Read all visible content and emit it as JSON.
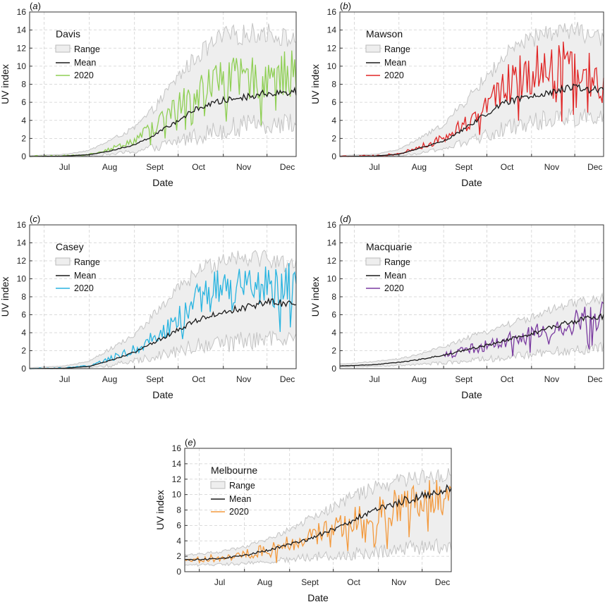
{
  "chart_data": [
    {
      "type": "line",
      "panel_label": "(a)",
      "station": "Davis",
      "xlabel": "Date",
      "ylabel": "UV index",
      "ylim": [
        0,
        16
      ],
      "yticks": [
        0,
        2,
        4,
        6,
        8,
        10,
        12,
        14,
        16
      ],
      "month_labels": [
        "Jul",
        "Aug",
        "Sept",
        "Oct",
        "Nov",
        "Dec"
      ],
      "x_range": [
        "2020-06-21",
        "2020-12-21"
      ],
      "grid": true,
      "legend_position": "top-left",
      "legend": [
        "Range",
        "Mean",
        "2020"
      ],
      "colors": {
        "series": "#8fcf55",
        "mean": "#1a1a1a",
        "range": "#eeeeee"
      },
      "series_start": "2020-06-21",
      "series": [
        {
          "name": "Range",
          "role": "band",
          "x": [
            "2020-06-21",
            "2020-07-15",
            "2020-08-01",
            "2020-08-15",
            "2020-09-01",
            "2020-09-15",
            "2020-10-01",
            "2020-10-15",
            "2020-11-01",
            "2020-11-15",
            "2020-12-01",
            "2020-12-21"
          ],
          "low": [
            0,
            0,
            0.05,
            0.2,
            0.5,
            0.9,
            1.6,
            2.2,
            2.8,
            3.2,
            3.4,
            3.5
          ],
          "high": [
            0.1,
            0.25,
            0.7,
            1.8,
            3.2,
            5.5,
            9,
            11.5,
            13.5,
            13.8,
            14,
            13
          ]
        },
        {
          "name": "Mean",
          "role": "mean",
          "x": [
            "2020-06-21",
            "2020-07-15",
            "2020-08-01",
            "2020-08-15",
            "2020-09-01",
            "2020-09-15",
            "2020-10-01",
            "2020-10-15",
            "2020-11-01",
            "2020-11-15",
            "2020-12-01",
            "2020-12-21"
          ],
          "y": [
            0,
            0.05,
            0.2,
            0.6,
            1.3,
            2.4,
            4,
            5.4,
            6.2,
            6.6,
            7,
            7.2
          ]
        },
        {
          "name": "2020",
          "role": "series",
          "x": [
            "2020-06-21",
            "2020-07-15",
            "2020-08-01",
            "2020-08-15",
            "2020-09-01",
            "2020-09-15",
            "2020-10-01",
            "2020-10-15",
            "2020-11-01",
            "2020-11-15",
            "2020-12-01",
            "2020-12-21"
          ],
          "y": [
            0,
            0.05,
            0.25,
            0.8,
            1.8,
            3.4,
            5.6,
            7.4,
            8.6,
            8.5,
            9,
            9.2
          ]
        }
      ]
    },
    {
      "type": "line",
      "panel_label": "(b)",
      "station": "Mawson",
      "xlabel": "Date",
      "ylabel": "UV index",
      "ylim": [
        0,
        16
      ],
      "yticks": [
        0,
        2,
        4,
        6,
        8,
        10,
        12,
        14,
        16
      ],
      "month_labels": [
        "Jul",
        "Aug",
        "Sept",
        "Oct",
        "Nov",
        "Dec"
      ],
      "x_range": [
        "2020-06-21",
        "2020-12-21"
      ],
      "grid": true,
      "legend_position": "top-left",
      "legend": [
        "Range",
        "Mean",
        "2020"
      ],
      "colors": {
        "series": "#e02626",
        "mean": "#1a1a1a",
        "range": "#eeeeee"
      },
      "series_start": "2020-06-21",
      "series": [
        {
          "name": "Range",
          "role": "band",
          "x": [
            "2020-06-21",
            "2020-07-15",
            "2020-08-01",
            "2020-08-15",
            "2020-09-01",
            "2020-09-15",
            "2020-10-01",
            "2020-10-15",
            "2020-11-01",
            "2020-11-15",
            "2020-12-01",
            "2020-12-21"
          ],
          "low": [
            0,
            0,
            0.05,
            0.3,
            0.8,
            1.4,
            2.2,
            3,
            3.6,
            4,
            4.2,
            4.5
          ],
          "high": [
            0.1,
            0.25,
            0.8,
            2,
            3.6,
            6,
            9,
            11.5,
            13.2,
            14,
            14.2,
            13
          ]
        },
        {
          "name": "Mean",
          "role": "mean",
          "x": [
            "2020-06-21",
            "2020-07-15",
            "2020-08-01",
            "2020-08-15",
            "2020-09-01",
            "2020-09-15",
            "2020-10-01",
            "2020-10-15",
            "2020-11-01",
            "2020-11-15",
            "2020-12-01",
            "2020-12-21"
          ],
          "y": [
            0,
            0.05,
            0.25,
            0.9,
            1.7,
            3,
            4.8,
            6,
            6.8,
            7.2,
            7.6,
            7.3
          ]
        },
        {
          "name": "2020",
          "role": "series",
          "x": [
            "2020-06-21",
            "2020-07-15",
            "2020-08-01",
            "2020-08-15",
            "2020-09-01",
            "2020-09-15",
            "2020-10-01",
            "2020-10-15",
            "2020-11-01",
            "2020-11-15",
            "2020-12-01",
            "2020-12-21"
          ],
          "y": [
            0,
            0.05,
            0.3,
            1,
            2,
            3.5,
            5.8,
            8,
            9.5,
            10.4,
            10.6,
            7.5
          ]
        }
      ]
    },
    {
      "type": "line",
      "panel_label": "(c)",
      "station": "Casey",
      "xlabel": "Date",
      "ylabel": "UV index",
      "ylim": [
        0,
        16
      ],
      "yticks": [
        0,
        2,
        4,
        6,
        8,
        10,
        12,
        14,
        16
      ],
      "month_labels": [
        "Jul",
        "Aug",
        "Sept",
        "Oct",
        "Nov",
        "Dec"
      ],
      "x_range": [
        "2020-06-21",
        "2020-12-21"
      ],
      "grid": true,
      "legend_position": "top-left",
      "legend": [
        "Range",
        "Mean",
        "2020"
      ],
      "colors": {
        "series": "#29b4e0",
        "mean": "#1a1a1a",
        "range": "#eeeeee"
      },
      "series_start": "2020-06-21",
      "series": [
        {
          "name": "Range",
          "role": "band",
          "x": [
            "2020-06-21",
            "2020-07-15",
            "2020-08-01",
            "2020-08-15",
            "2020-09-01",
            "2020-09-15",
            "2020-10-01",
            "2020-10-15",
            "2020-11-01",
            "2020-11-15",
            "2020-12-01",
            "2020-12-21"
          ],
          "low": [
            0,
            0,
            0.05,
            0.3,
            0.8,
            1.3,
            1.9,
            2.4,
            2.6,
            2.8,
            3,
            3.2
          ],
          "high": [
            0.1,
            0.3,
            0.9,
            2.2,
            3.8,
            6.2,
            9,
            11,
            12.5,
            12.8,
            12.5,
            11.5
          ]
        },
        {
          "name": "Mean",
          "role": "mean",
          "x": [
            "2020-06-21",
            "2020-07-15",
            "2020-08-01",
            "2020-08-15",
            "2020-09-01",
            "2020-09-15",
            "2020-10-01",
            "2020-10-15",
            "2020-11-01",
            "2020-11-15",
            "2020-12-01",
            "2020-12-21"
          ],
          "y": [
            0,
            0.05,
            0.25,
            0.9,
            1.8,
            3,
            4.3,
            5.5,
            6.3,
            6.8,
            7.4,
            7.2
          ]
        },
        {
          "name": "2020",
          "role": "series",
          "x": [
            "2020-06-21",
            "2020-07-15",
            "2020-08-01",
            "2020-08-15",
            "2020-09-01",
            "2020-09-15",
            "2020-10-01",
            "2020-10-15",
            "2020-11-01",
            "2020-11-15",
            "2020-12-01",
            "2020-12-21"
          ],
          "y": [
            0,
            0.05,
            0.3,
            1.1,
            2.1,
            3.5,
            5.5,
            7.6,
            9,
            8.6,
            9.1,
            9.4
          ]
        }
      ]
    },
    {
      "type": "line",
      "panel_label": "(d)",
      "station": "Macquarie",
      "xlabel": "Date",
      "ylabel": "UV index",
      "ylim": [
        0,
        16
      ],
      "yticks": [
        0,
        2,
        4,
        6,
        8,
        10,
        12,
        14,
        16
      ],
      "month_labels": [
        "Jul",
        "Aug",
        "Sept",
        "Oct",
        "Nov",
        "Dec"
      ],
      "x_range": [
        "2020-06-21",
        "2020-12-21"
      ],
      "grid": true,
      "legend_position": "top-left",
      "legend": [
        "Range",
        "Mean",
        "2020"
      ],
      "colors": {
        "series": "#7a3aa0",
        "mean": "#1a1a1a",
        "range": "#eeeeee"
      },
      "series_start": "2020-09-01",
      "series": [
        {
          "name": "Range",
          "role": "band",
          "x": [
            "2020-06-21",
            "2020-07-15",
            "2020-08-01",
            "2020-08-15",
            "2020-09-01",
            "2020-09-15",
            "2020-10-01",
            "2020-10-15",
            "2020-11-01",
            "2020-11-15",
            "2020-12-01",
            "2020-12-21"
          ],
          "low": [
            0.2,
            0.25,
            0.35,
            0.45,
            0.6,
            0.8,
            1,
            1.2,
            1.5,
            1.8,
            2,
            2.2
          ],
          "high": [
            0.5,
            0.8,
            1.1,
            1.6,
            2.5,
            3.3,
            4.2,
            5,
            5.8,
            6.6,
            7.4,
            7.9
          ]
        },
        {
          "name": "Mean",
          "role": "mean",
          "x": [
            "2020-06-21",
            "2020-07-15",
            "2020-08-01",
            "2020-08-15",
            "2020-09-01",
            "2020-09-15",
            "2020-10-01",
            "2020-10-15",
            "2020-11-01",
            "2020-11-15",
            "2020-12-01",
            "2020-12-21"
          ],
          "y": [
            0.3,
            0.45,
            0.7,
            1,
            1.5,
            2,
            2.6,
            3.2,
            3.9,
            4.6,
            5.3,
            5.9
          ]
        },
        {
          "name": "2020",
          "role": "series",
          "x": [
            "2020-09-01",
            "2020-09-15",
            "2020-10-01",
            "2020-10-15",
            "2020-11-01",
            "2020-11-15",
            "2020-12-01",
            "2020-12-21"
          ],
          "y": [
            1.4,
            2,
            2.6,
            3.1,
            3.8,
            4.5,
            5.2,
            5.9
          ]
        }
      ]
    },
    {
      "type": "line",
      "panel_label": "(e)",
      "station": "Melbourne",
      "xlabel": "Date",
      "ylabel": "UV index",
      "ylim": [
        0,
        16
      ],
      "yticks": [
        0,
        2,
        4,
        6,
        8,
        10,
        12,
        14,
        16
      ],
      "month_labels": [
        "Jul",
        "Aug",
        "Sept",
        "Oct",
        "Nov",
        "Dec"
      ],
      "x_range": [
        "2020-06-21",
        "2020-12-21"
      ],
      "grid": true,
      "legend_position": "top-left",
      "legend": [
        "Range",
        "Mean",
        "2020"
      ],
      "colors": {
        "series": "#f39a3e",
        "mean": "#1a1a1a",
        "range": "#eeeeee"
      },
      "series_start": "2020-06-21",
      "series": [
        {
          "name": "Range",
          "role": "band",
          "x": [
            "2020-06-21",
            "2020-07-15",
            "2020-08-01",
            "2020-08-15",
            "2020-09-01",
            "2020-09-15",
            "2020-10-01",
            "2020-10-15",
            "2020-11-01",
            "2020-11-15",
            "2020-12-01",
            "2020-12-21"
          ],
          "low": [
            0.8,
            0.9,
            1,
            1.2,
            1.5,
            1.8,
            2,
            2.2,
            2.5,
            2.8,
            3,
            3.2
          ],
          "high": [
            2.2,
            2.6,
            3.2,
            4.2,
            5.5,
            7,
            8.5,
            10,
            11.2,
            12,
            12.5,
            12.8
          ]
        },
        {
          "name": "Mean",
          "role": "mean",
          "x": [
            "2020-06-21",
            "2020-07-15",
            "2020-08-01",
            "2020-08-15",
            "2020-09-01",
            "2020-09-15",
            "2020-10-01",
            "2020-10-15",
            "2020-11-01",
            "2020-11-15",
            "2020-12-01",
            "2020-12-21"
          ],
          "y": [
            1.5,
            1.7,
            2.1,
            2.7,
            3.5,
            4.3,
            5.5,
            6.8,
            8,
            9,
            9.8,
            10.8
          ]
        },
        {
          "name": "2020",
          "role": "series",
          "x": [
            "2020-06-21",
            "2020-07-15",
            "2020-08-01",
            "2020-08-15",
            "2020-09-01",
            "2020-09-15",
            "2020-10-01",
            "2020-10-15",
            "2020-11-01",
            "2020-11-15",
            "2020-12-01",
            "2020-12-21"
          ],
          "y": [
            1.5,
            1.8,
            2.2,
            2.8,
            3.7,
            4.5,
            5.6,
            6.6,
            7.6,
            8.5,
            9.4,
            10.4
          ]
        }
      ]
    }
  ]
}
